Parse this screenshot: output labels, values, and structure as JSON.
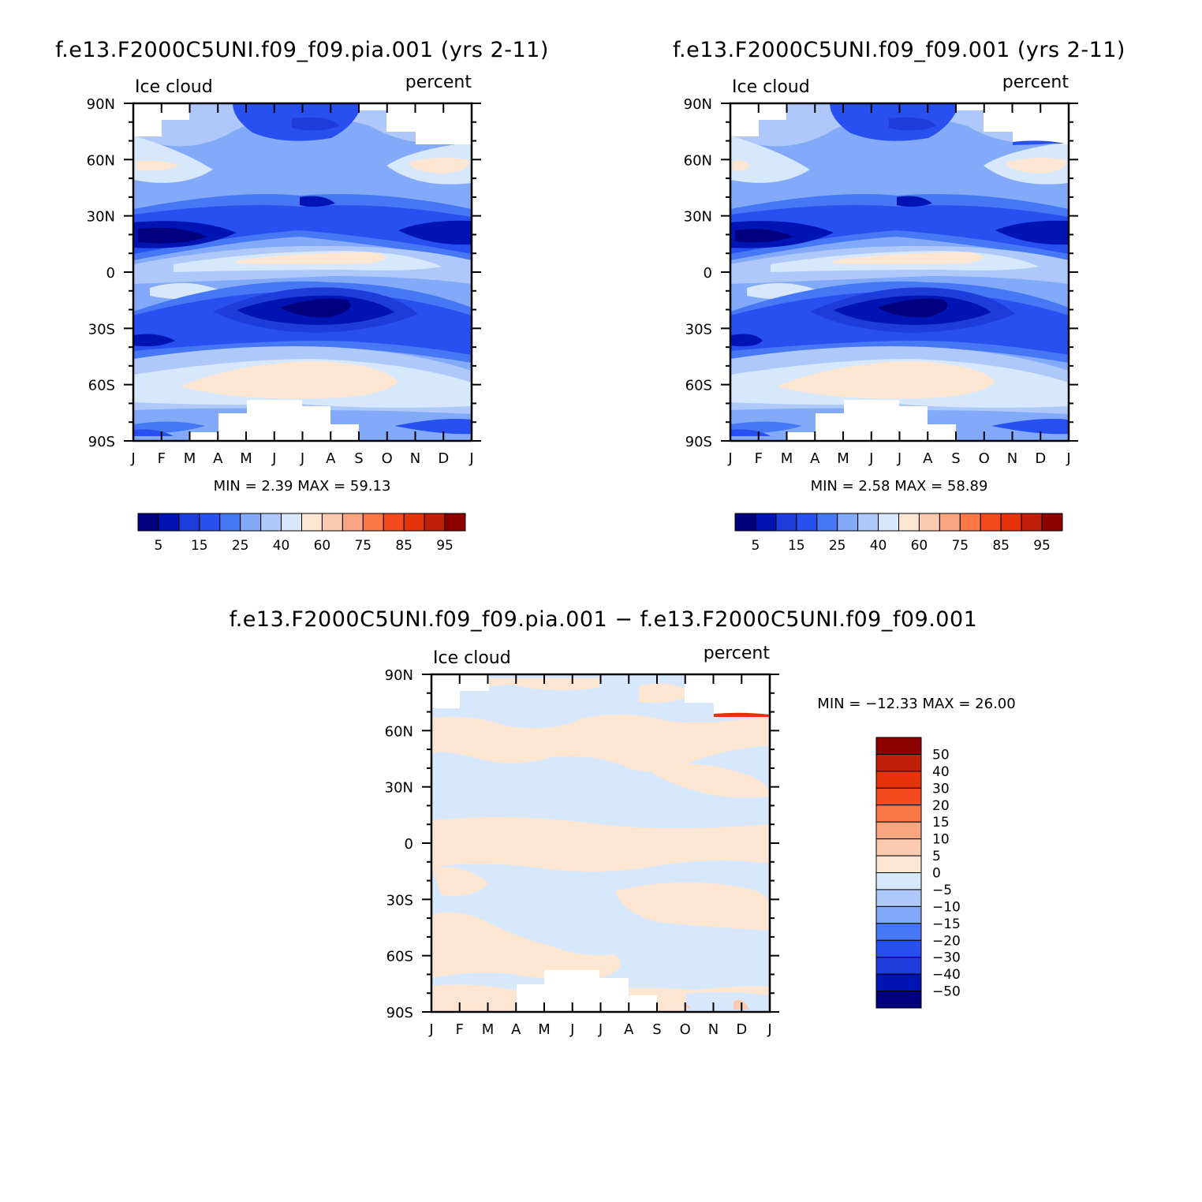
{
  "chart_data": [
    {
      "type": "heatmap",
      "title": "f.e13.F2000C5UNI.f09_f09.pia.001 (yrs 2-11)",
      "left_label": "Ice cloud",
      "right_label": "percent",
      "x_tick_labels": [
        "J",
        "F",
        "M",
        "A",
        "M",
        "J",
        "J",
        "A",
        "S",
        "O",
        "N",
        "D",
        "J"
      ],
      "y_tick_labels": [
        "90N",
        "60N",
        "30N",
        "0",
        "30S",
        "60S",
        "90S"
      ],
      "ylim": [
        -90,
        90
      ],
      "stats": "MIN =    2.39  MAX =   59.13",
      "colorbar_labels": [
        "5",
        "15",
        "25",
        "40",
        "60",
        "75",
        "85",
        "95"
      ],
      "colorbar_colors": [
        "#00007f",
        "#0014b4",
        "#1e3cdc",
        "#2850f0",
        "#4678f5",
        "#82aaf8",
        "#afc8fa",
        "#d7e8fc",
        "#fce6d2",
        "#fccab0",
        "#faa582",
        "#fa7846",
        "#f54a1e",
        "#e6320a",
        "#c0200a",
        "#8c0000"
      ]
    },
    {
      "type": "heatmap",
      "title": "f.e13.F2000C5UNI.f09_f09.001 (yrs 2-11)",
      "left_label": "Ice cloud",
      "right_label": "percent",
      "x_tick_labels": [
        "J",
        "F",
        "M",
        "A",
        "M",
        "J",
        "J",
        "A",
        "S",
        "O",
        "N",
        "D",
        "J"
      ],
      "y_tick_labels": [
        "90N",
        "60N",
        "30N",
        "0",
        "30S",
        "60S",
        "90S"
      ],
      "ylim": [
        -90,
        90
      ],
      "stats": "MIN =    2.58  MAX =   58.89",
      "colorbar_labels": [
        "5",
        "15",
        "25",
        "40",
        "60",
        "75",
        "85",
        "95"
      ],
      "colorbar_colors": [
        "#00007f",
        "#0014b4",
        "#1e3cdc",
        "#2850f0",
        "#4678f5",
        "#82aaf8",
        "#afc8fa",
        "#d7e8fc",
        "#fce6d2",
        "#fccab0",
        "#faa582",
        "#fa7846",
        "#f54a1e",
        "#e6320a",
        "#c0200a",
        "#8c0000"
      ]
    },
    {
      "type": "heatmap",
      "title": "f.e13.F2000C5UNI.f09_f09.pia.001 − f.e13.F2000C5UNI.f09_f09.001",
      "left_label": "Ice cloud",
      "right_label": "percent",
      "x_tick_labels": [
        "J",
        "F",
        "M",
        "A",
        "M",
        "J",
        "J",
        "A",
        "S",
        "O",
        "N",
        "D",
        "J"
      ],
      "y_tick_labels": [
        "90N",
        "60N",
        "30N",
        "0",
        "30S",
        "60S",
        "90S"
      ],
      "ylim": [
        -90,
        90
      ],
      "stats": "MIN = −12.33  MAX =   26.00",
      "colorbar_labels": [
        "50",
        "40",
        "30",
        "20",
        "15",
        "10",
        "5",
        "0",
        "−5",
        "−10",
        "−15",
        "−20",
        "−30",
        "−40",
        "−50"
      ],
      "colorbar_colors": [
        "#8c0000",
        "#c0200a",
        "#e6320a",
        "#f54a1e",
        "#fa7846",
        "#faa582",
        "#fccab0",
        "#fce6d2",
        "#d7e8fc",
        "#afc8fa",
        "#82aaf8",
        "#4678f5",
        "#2850f0",
        "#1e3cdc",
        "#0014b4",
        "#00007f"
      ]
    }
  ]
}
